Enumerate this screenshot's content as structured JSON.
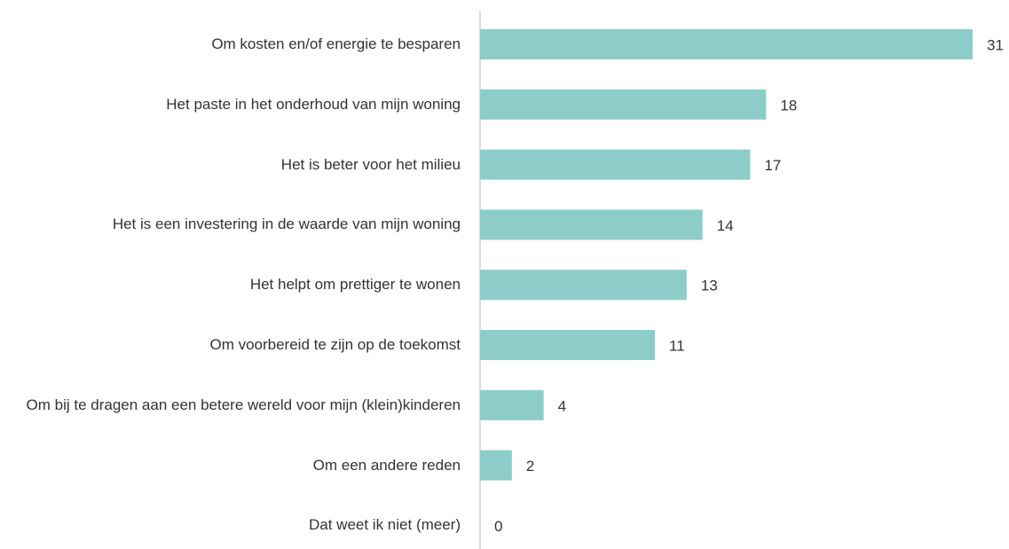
{
  "chart_data": {
    "type": "bar",
    "orientation": "horizontal",
    "categories": [
      "Om kosten en/of energie te besparen",
      "Het paste in het onderhoud van mijn woning",
      "Het is beter voor het milieu",
      "Het is een investering in de waarde van mijn woning",
      "Het helpt om prettiger te wonen",
      "Om voorbereid te zijn op de toekomst",
      "Om bij te dragen aan een betere wereld voor mijn (klein)kinderen",
      "Om een andere reden",
      "Dat weet ik niet (meer)"
    ],
    "values": [
      31,
      18,
      17,
      14,
      13,
      11,
      4,
      2,
      0
    ],
    "color": "#8ccdc9"
  }
}
